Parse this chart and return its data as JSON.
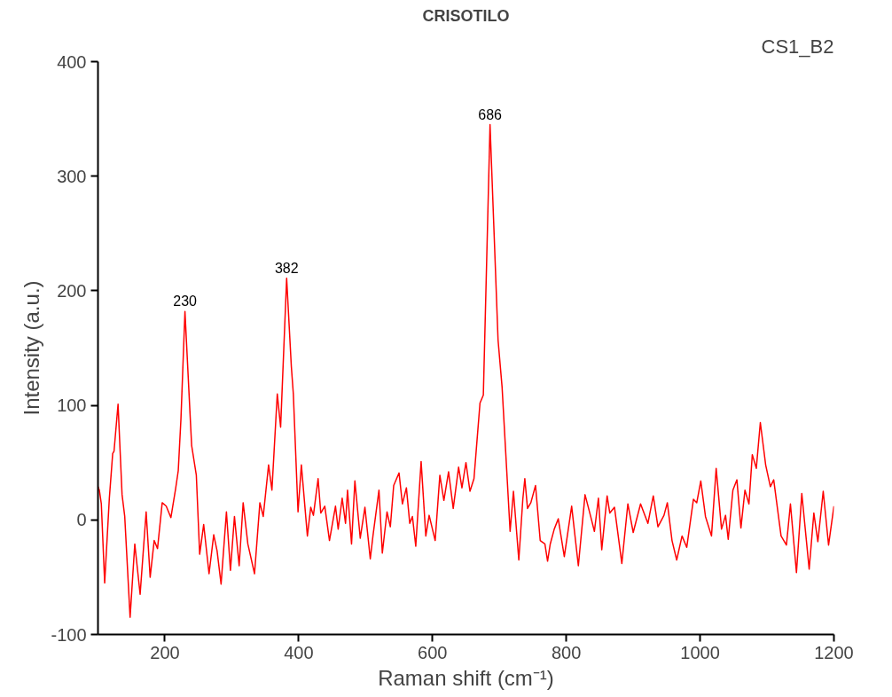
{
  "chart_data": {
    "type": "line",
    "title": "CRISOTILO",
    "subtitle": "CS1_B2",
    "xlabel": "Raman shift (cm⁻¹)",
    "ylabel": "Intensity (a.u.)",
    "xlim": [
      100,
      1200
    ],
    "ylim": [
      -100,
      400
    ],
    "xticks": [
      200,
      400,
      600,
      800,
      1000,
      1200
    ],
    "yticks": [
      -100,
      0,
      100,
      200,
      300,
      400
    ],
    "line_style": "solid",
    "annotations": [
      {
        "text": "230",
        "x": 230,
        "y": 182
      },
      {
        "text": "382",
        "x": 382,
        "y": 211
      },
      {
        "text": "686",
        "x": 686,
        "y": 345
      }
    ],
    "series": [
      {
        "color": "#ff0000",
        "x": [
          100,
          102,
          105,
          110,
          117,
          122,
          124,
          130,
          136,
          140,
          148,
          155,
          163,
          172,
          178,
          184,
          189,
          196,
          202,
          209,
          216,
          220,
          224,
          230,
          238,
          240,
          247,
          252,
          258,
          266,
          273,
          278,
          284,
          292,
          298,
          304,
          311,
          317,
          324,
          334,
          342,
          347,
          355,
          360,
          368,
          373,
          382,
          389,
          392,
          399,
          404,
          413,
          418,
          422,
          429,
          433,
          439,
          446,
          455,
          459,
          465,
          470,
          473,
          479,
          484,
          492,
          499,
          507,
          511,
          520,
          525,
          532,
          537,
          542,
          550,
          555,
          561,
          566,
          570,
          575,
          583,
          590,
          595,
          604,
          611,
          617,
          624,
          631,
          639,
          644,
          650,
          656,
          662,
          671,
          676,
          686,
          698,
          704,
          716,
          721,
          729,
          735,
          738,
          742,
          747,
          754,
          761,
          768,
          772,
          776,
          782,
          788,
          797,
          808,
          818,
          828,
          836,
          842,
          848,
          853,
          861,
          865,
          872,
          883,
          892,
          900,
          911,
          922,
          930,
          937,
          946,
          951,
          958,
          965,
          973,
          980,
          990,
          995,
          1001,
          1008,
          1017,
          1024,
          1032,
          1038,
          1042,
          1049,
          1055,
          1061,
          1067,
          1073,
          1078,
          1084,
          1090,
          1098,
          1105,
          1110,
          1121,
          1129,
          1135,
          1144,
          1152,
          1163,
          1170,
          1176,
          1184,
          1192,
          1200
        ],
        "values": [
          29,
          26,
          14,
          -55,
          19,
          58,
          60,
          101,
          22,
          3,
          -85,
          -21,
          -65,
          7,
          -50,
          -18,
          -25,
          15,
          12,
          2,
          27,
          43,
          88,
          182,
          88,
          65,
          39,
          -30,
          -4,
          -47,
          -13,
          -27,
          -56,
          7,
          -44,
          3,
          -40,
          15,
          -21,
          -47,
          15,
          3,
          48,
          26,
          110,
          81,
          211,
          134,
          110,
          7,
          48,
          -14,
          11,
          4,
          36,
          6,
          12,
          -18,
          12,
          -8,
          19,
          -3,
          26,
          -21,
          34,
          -16,
          11,
          -34,
          -14,
          26,
          -29,
          7,
          -6,
          30,
          41,
          14,
          28,
          -3,
          3,
          -23,
          51,
          -14,
          4,
          -18,
          39,
          17,
          42,
          10,
          46,
          28,
          50,
          25,
          36,
          102,
          109,
          345,
          157,
          116,
          -10,
          25,
          -35,
          18,
          36,
          10,
          15,
          30,
          -18,
          -21,
          -36,
          -21,
          -8,
          1,
          -32,
          12,
          -40,
          22,
          4,
          -10,
          19,
          -26,
          21,
          6,
          11,
          -38,
          14,
          -11,
          14,
          -3,
          21,
          -6,
          4,
          15,
          -18,
          -35,
          -14,
          -24,
          18,
          15,
          34,
          3,
          -14,
          45,
          -8,
          4,
          -17,
          26,
          35,
          -7,
          26,
          14,
          57,
          45,
          85,
          48,
          29,
          35,
          -14,
          -22,
          14,
          -46,
          23,
          -43,
          6,
          -19,
          25,
          -22,
          12
        ]
      }
    ]
  }
}
